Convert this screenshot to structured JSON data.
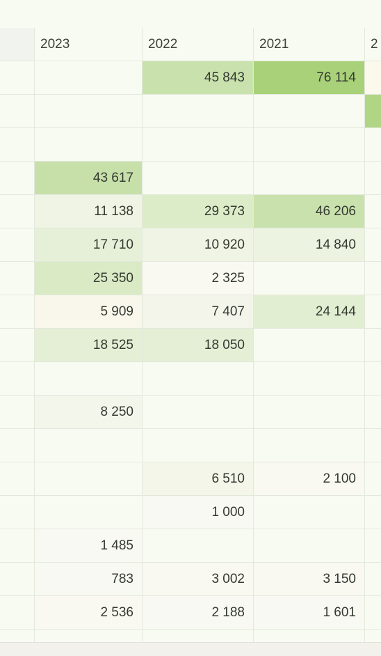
{
  "header": {
    "columns": [
      "",
      "2023",
      "2022",
      "2021",
      "2"
    ]
  },
  "rows": [
    {
      "cells": [
        "",
        "",
        "45 843",
        "76 114",
        ""
      ],
      "bg": [
        "",
        "",
        "#c9e2ad",
        "#a9d17a",
        "#fbf8ec"
      ]
    },
    {
      "cells": [
        "",
        "",
        "",
        "",
        ""
      ],
      "bg": [
        "",
        "",
        "",
        "",
        "#b0d585"
      ]
    },
    {
      "cells": [
        "",
        "",
        "",
        "",
        ""
      ],
      "bg": [
        "",
        "",
        "",
        "",
        ""
      ]
    },
    {
      "cells": [
        "",
        "43 617",
        "",
        "",
        ""
      ],
      "bg": [
        "",
        "#c7e0aa",
        "",
        "",
        ""
      ]
    },
    {
      "cells": [
        "",
        "11 138",
        "29 373",
        "46 206",
        ""
      ],
      "bg": [
        "",
        "#f0f4e4",
        "#dcecc8",
        "#c9e2ad",
        ""
      ]
    },
    {
      "cells": [
        "",
        "17 710",
        "10 920",
        "14 840",
        ""
      ],
      "bg": [
        "",
        "#e6f0d8",
        "#f0f4e4",
        "#ecf3e1",
        ""
      ]
    },
    {
      "cells": [
        "",
        "25 350",
        "2 325",
        "",
        ""
      ],
      "bg": [
        "",
        "#d9eac4",
        "#f9f9f2",
        "",
        ""
      ]
    },
    {
      "cells": [
        "",
        "5 909",
        "7 407",
        "24 144",
        ""
      ],
      "bg": [
        "",
        "#f9f7ec",
        "#f3f5ea",
        "#e2eed2",
        ""
      ]
    },
    {
      "cells": [
        "",
        "18 525",
        "18 050",
        "",
        ""
      ],
      "bg": [
        "",
        "#e4efd6",
        "#e4efd6",
        "",
        ""
      ]
    },
    {
      "cells": [
        "",
        "",
        "",
        "",
        ""
      ],
      "bg": [
        "",
        "",
        "",
        "",
        ""
      ]
    },
    {
      "cells": [
        "",
        "8 250",
        "",
        "",
        ""
      ],
      "bg": [
        "",
        "#f3f6ea",
        "",
        "",
        ""
      ]
    },
    {
      "cells": [
        "",
        "",
        "",
        "",
        ""
      ],
      "bg": [
        "",
        "",
        "",
        "",
        ""
      ]
    },
    {
      "cells": [
        "",
        "",
        "6 510",
        "2 100",
        ""
      ],
      "bg": [
        "",
        "",
        "#f4f6ea",
        "#f9f9f2",
        ""
      ]
    },
    {
      "cells": [
        "",
        "",
        "1 000",
        "",
        ""
      ],
      "bg": [
        "",
        "",
        "#f9f9f3",
        "",
        ""
      ]
    },
    {
      "cells": [
        "",
        "1 485",
        "",
        "",
        ""
      ],
      "bg": [
        "",
        "#f9f9f3",
        "",
        "",
        ""
      ]
    },
    {
      "cells": [
        "",
        "783",
        "3 002",
        "3 150",
        ""
      ],
      "bg": [
        "",
        "#f9f9f3",
        "#f9f8f1",
        "#f9f8f1",
        ""
      ]
    },
    {
      "cells": [
        "",
        "2 536",
        "2 188",
        "1 601",
        ""
      ],
      "bg": [
        "",
        "#f9f8f1",
        "#f9f9f3",
        "#f9f9f3",
        ""
      ]
    },
    {
      "cells": [
        "",
        "",
        "",
        "",
        ""
      ],
      "bg": [
        "",
        "",
        "",
        "",
        ""
      ]
    }
  ],
  "colors": {
    "background": "#f8fbf2",
    "gridline": "#e3e8dc",
    "corner": "#f1f3ee"
  }
}
